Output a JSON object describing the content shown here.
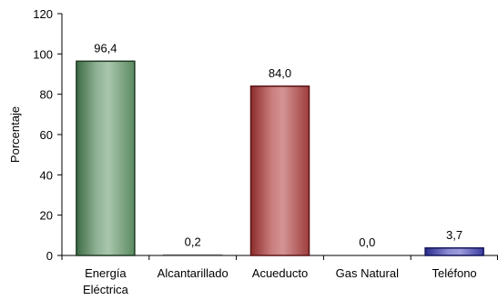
{
  "chart_data": {
    "type": "bar",
    "categories": [
      "Energía Eléctrica",
      "Alcantarillado",
      "Acueducto",
      "Gas Natural",
      "Teléfono"
    ],
    "category_lines": [
      [
        "Energía",
        "Eléctrica"
      ],
      [
        "Alcantarillado"
      ],
      [
        "Acueducto"
      ],
      [
        "Gas Natural"
      ],
      [
        "Teléfono"
      ]
    ],
    "values": [
      96.4,
      0.2,
      84.0,
      0.0,
      3.7
    ],
    "value_labels": [
      "96,4",
      "0,2",
      "84,0",
      "0,0",
      "3,7"
    ],
    "title": "",
    "xlabel": "",
    "ylabel": "Porcentaje",
    "ylim": [
      0,
      120
    ],
    "yticks": [
      0,
      20,
      40,
      60,
      80,
      100,
      120
    ],
    "grid": false,
    "bar_colors": [
      "#4a7a52",
      "#8a8a8a",
      "#a03a3a",
      "#8a8a8a",
      "#3a3aa0"
    ]
  }
}
